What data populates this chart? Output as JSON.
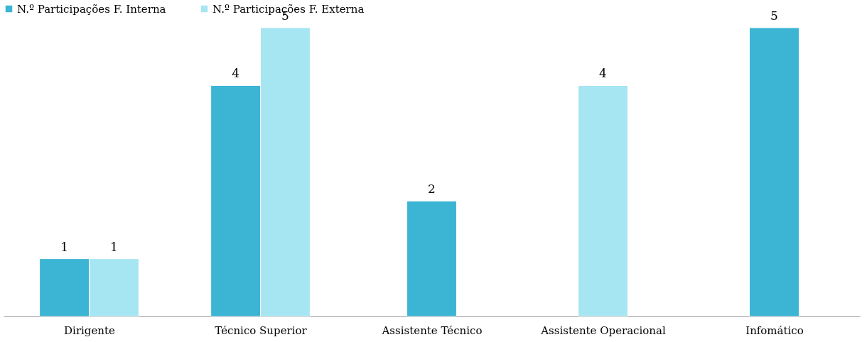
{
  "chart_data": {
    "type": "bar",
    "categories": [
      "Dirigente",
      "Técnico Superior",
      "Assistente Técnico",
      "Assistente Operacional",
      "Infomático"
    ],
    "series": [
      {
        "name": "N.º Participações  F. Interna",
        "color": "#3cb4d4",
        "values": [
          1,
          4,
          2,
          null,
          5
        ]
      },
      {
        "name": "N.º Participações F. Externa",
        "color": "#a6e6f2",
        "values": [
          1,
          5,
          null,
          4,
          null
        ]
      }
    ],
    "data_labels": true,
    "legend": "top",
    "grid": false
  }
}
